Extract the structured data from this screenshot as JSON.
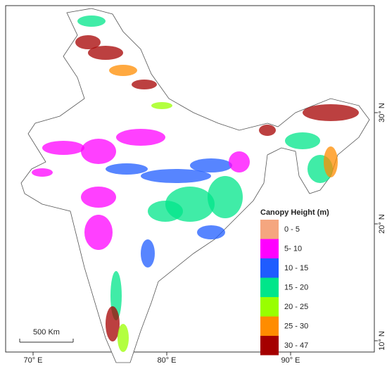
{
  "map": {
    "legend": {
      "title": "Canopy Height (m)",
      "items": [
        {
          "label": "0 - 5",
          "color": "#f5a67f"
        },
        {
          "label": "5- 10",
          "color": "#ff00ff"
        },
        {
          "label": "10 - 15",
          "color": "#1f5cff"
        },
        {
          "label": "15 - 20",
          "color": "#00e68a"
        },
        {
          "label": "20 - 25",
          "color": "#99ff00"
        },
        {
          "label": "25 - 30",
          "color": "#ff8c00"
        },
        {
          "label": "30 - 47",
          "color": "#a50000"
        }
      ]
    },
    "x_axis_labels": [
      "70° E",
      "80° E",
      "90° E"
    ],
    "y_axis_labels": [
      "30° N",
      "20° N",
      "10° N"
    ],
    "scale_bar": "500 Km"
  }
}
